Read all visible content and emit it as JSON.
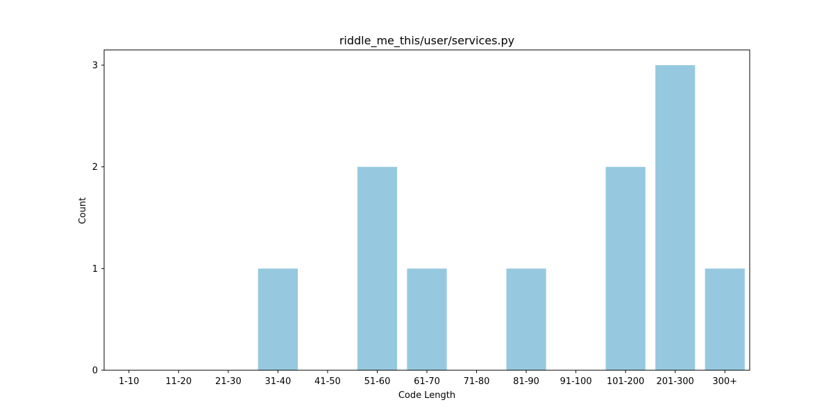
{
  "chart_data": {
    "type": "bar",
    "title": "riddle_me_this/user/services.py",
    "xlabel": "Code Length",
    "ylabel": "Count",
    "categories": [
      "1-10",
      "11-20",
      "21-30",
      "31-40",
      "41-50",
      "51-60",
      "61-70",
      "71-80",
      "81-90",
      "91-100",
      "101-200",
      "201-300",
      "300+"
    ],
    "values": [
      0,
      0,
      0,
      1,
      0,
      2,
      1,
      0,
      1,
      0,
      2,
      3,
      1
    ],
    "yticks": [
      0,
      1,
      2,
      3
    ],
    "ylim": [
      0,
      3.15
    ],
    "grid": false,
    "bar_color": "#96c9df",
    "axis_color": "#000000"
  }
}
